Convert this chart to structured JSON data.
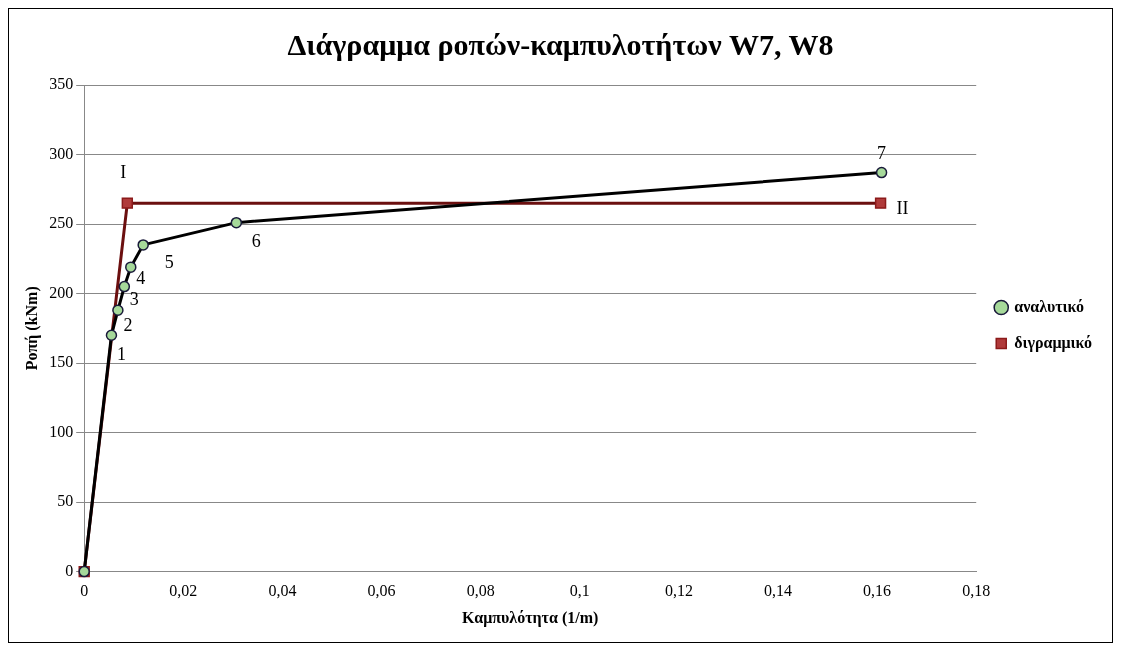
{
  "chart_data": {
    "type": "line",
    "title": "Διάγραμμα ροπών-καμπυλοτήτων W7, W8",
    "xlabel": "Καμπυλότητα (1/m)",
    "ylabel": "Ροπή (kNm)",
    "series": [
      {
        "name": "αναλυτικό",
        "color": "#000000",
        "x": [
          0,
          0.0055,
          0.0068,
          0.0081,
          0.0094,
          0.0119,
          0.0307,
          0.1609
        ],
        "values": [
          0,
          170,
          188,
          205,
          219,
          235,
          251,
          287
        ],
        "marker": "circle"
      },
      {
        "name": "διγραμμικό",
        "color": "#6b0f0f",
        "x": [
          0,
          0.0087,
          0.1607
        ],
        "values": [
          0,
          265,
          265
        ],
        "marker": "square"
      }
    ],
    "xlim": [
      0,
      0.18
    ],
    "xticks": [
      0,
      {
        "value": 0.02,
        "label": "0,02"
      },
      {
        "value": 0.04,
        "label": "0,04"
      },
      {
        "value": 0.06,
        "label": "0,06"
      },
      {
        "value": 0.08,
        "label": "0,08"
      },
      {
        "value": 0.1,
        "label": "0,1"
      },
      {
        "value": 0.12,
        "label": "0,12"
      },
      {
        "value": 0.14,
        "label": "0,14"
      },
      {
        "value": 0.16,
        "label": "0,16"
      },
      {
        "value": 0.18,
        "label": "0,18"
      }
    ],
    "ylim": [
      0,
      350
    ],
    "yticks": [
      0,
      50,
      100,
      150,
      200,
      250,
      300,
      350
    ],
    "grid": "y",
    "legend": "right",
    "line_style": "solid",
    "annotations": [
      {
        "text": "1",
        "x": 0.0055,
        "y": 170
      },
      {
        "text": "2",
        "x": 0.0068,
        "y": 188
      },
      {
        "text": "3",
        "x": 0.0081,
        "y": 205
      },
      {
        "text": "4",
        "x": 0.0094,
        "y": 219
      },
      {
        "text": "5",
        "x": 0.0119,
        "y": 235
      },
      {
        "text": "6",
        "x": 0.0307,
        "y": 251
      },
      {
        "text": "7",
        "x": 0.1609,
        "y": 287
      },
      {
        "text": "I",
        "x": 0.0087,
        "y": 265
      },
      {
        "text": "II",
        "x": 0.1607,
        "y": 265
      }
    ]
  }
}
